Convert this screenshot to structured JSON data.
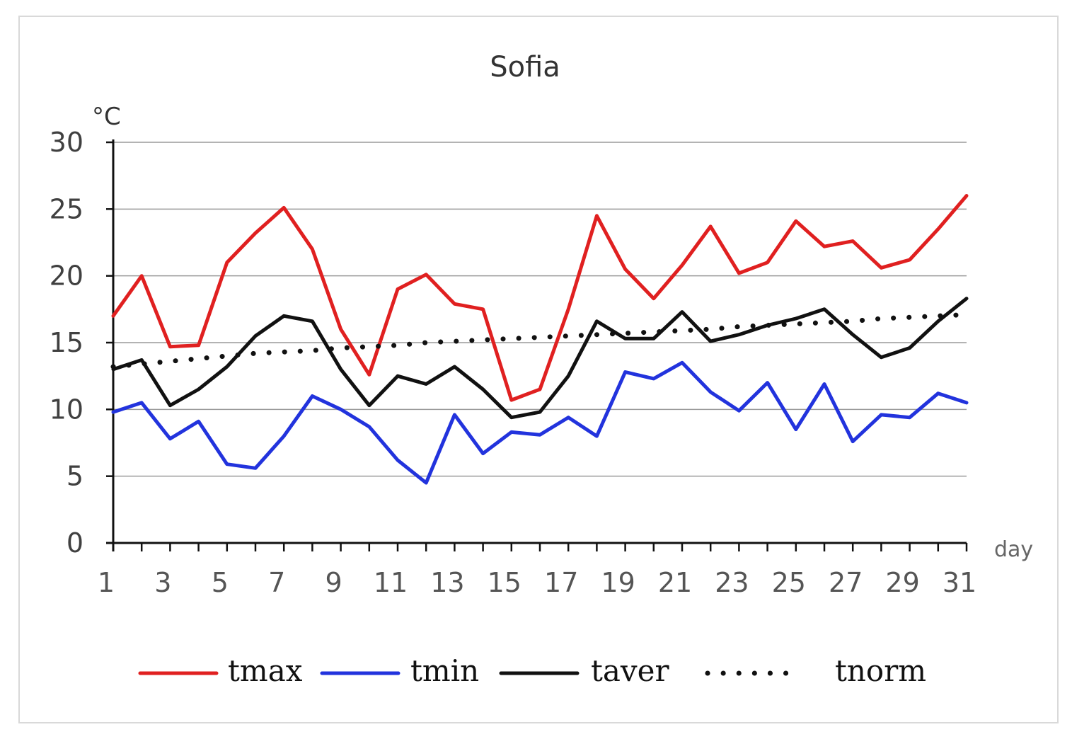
{
  "chart_data": {
    "type": "line",
    "title": "Sofia",
    "ylabel": "°C",
    "xlabel": "day",
    "ylim": [
      0,
      30
    ],
    "xlim": [
      1,
      31
    ],
    "yticks": [
      0,
      5,
      10,
      15,
      20,
      25,
      30
    ],
    "xtick_labels": [
      "1",
      "3",
      "5",
      "7",
      "9",
      "11",
      "13",
      "15",
      "17",
      "19",
      "21",
      "23",
      "25",
      "27",
      "29",
      "31"
    ],
    "grid": true,
    "legend_position": "bottom",
    "x": [
      1,
      2,
      3,
      4,
      5,
      6,
      7,
      8,
      9,
      10,
      11,
      12,
      13,
      14,
      15,
      16,
      17,
      18,
      19,
      20,
      21,
      22,
      23,
      24,
      25,
      26,
      27,
      28,
      29,
      30,
      31
    ],
    "series": [
      {
        "name": "tmax",
        "color": "#e02020",
        "style": "solid",
        "values": [
          17.0,
          20.0,
          14.7,
          14.8,
          21.0,
          23.2,
          25.1,
          22.0,
          16.0,
          12.6,
          19.0,
          20.1,
          17.9,
          17.5,
          10.7,
          11.5,
          17.5,
          24.5,
          20.5,
          18.3,
          20.8,
          23.7,
          20.2,
          21.0,
          24.1,
          22.2,
          22.6,
          20.6,
          21.2,
          23.5,
          26.0
        ]
      },
      {
        "name": "tmin",
        "color": "#2233dd",
        "style": "solid",
        "values": [
          9.8,
          10.5,
          7.8,
          9.1,
          5.9,
          5.6,
          8.0,
          11.0,
          10.0,
          8.7,
          6.2,
          4.5,
          9.6,
          6.7,
          8.3,
          8.1,
          9.4,
          8.0,
          12.8,
          12.3,
          13.5,
          11.3,
          9.9,
          12.0,
          8.5,
          11.9,
          7.6,
          9.6,
          9.4,
          11.2,
          10.5
        ]
      },
      {
        "name": "taver",
        "color": "#111111",
        "style": "solid",
        "values": [
          13.0,
          13.7,
          10.3,
          11.5,
          13.2,
          15.5,
          17.0,
          16.6,
          13.0,
          10.3,
          12.5,
          11.9,
          13.2,
          11.5,
          9.4,
          9.8,
          12.5,
          16.6,
          15.3,
          15.3,
          17.3,
          15.1,
          15.6,
          16.3,
          16.8,
          17.5,
          15.6,
          13.9,
          14.6,
          16.6,
          18.3
        ]
      },
      {
        "name": "tnorm",
        "color": "#111111",
        "style": "dotted",
        "values": [
          13.2,
          13.4,
          13.6,
          13.8,
          14.0,
          14.2,
          14.3,
          14.4,
          14.6,
          14.7,
          14.8,
          15.0,
          15.1,
          15.2,
          15.3,
          15.4,
          15.5,
          15.6,
          15.7,
          15.8,
          15.9,
          16.0,
          16.2,
          16.3,
          16.4,
          16.5,
          16.6,
          16.8,
          16.9,
          17.0,
          17.1
        ]
      }
    ]
  }
}
